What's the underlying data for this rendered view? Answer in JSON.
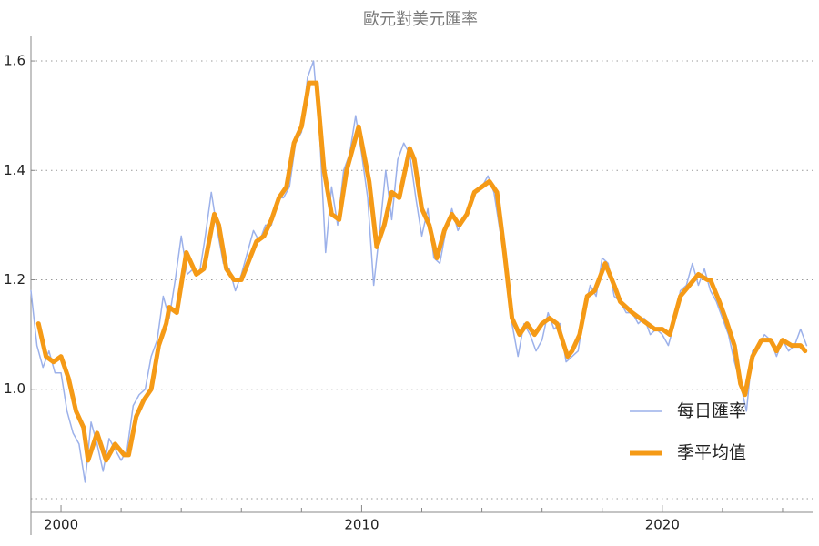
{
  "chart_data": {
    "type": "line",
    "title": "歐元對美元匯率",
    "xlim": [
      1999,
      2025
    ],
    "xticks": [
      2000,
      2010,
      2020
    ],
    "xminorticks": [
      2002,
      2004,
      2006,
      2008,
      2012,
      2014,
      2016,
      2018,
      2022,
      2024
    ],
    "ylim": [
      0.775,
      1.645
    ],
    "yticks": [
      {
        "value": 1.0,
        "label": "1.0"
      },
      {
        "value": 1.2,
        "label": "1.2"
      },
      {
        "value": 1.4,
        "label": "1.4"
      },
      {
        "value": 1.6,
        "label": "1.6"
      }
    ],
    "ygrid": [
      0.8,
      1.0,
      1.2,
      1.4,
      1.6
    ],
    "grid": true,
    "legend": "lower right",
    "series": [
      {
        "name": "每日匯率",
        "color": "#9cb1ea",
        "width": 1.5,
        "x": [
          1999.0,
          1999.2,
          1999.4,
          1999.6,
          1999.8,
          2000.0,
          2000.2,
          2000.4,
          2000.6,
          2000.8,
          2001.0,
          2001.2,
          2001.4,
          2001.6,
          2001.8,
          2002.0,
          2002.2,
          2002.4,
          2002.6,
          2002.8,
          2003.0,
          2003.2,
          2003.4,
          2003.6,
          2003.8,
          2004.0,
          2004.2,
          2004.4,
          2004.6,
          2004.8,
          2005.0,
          2005.2,
          2005.4,
          2005.6,
          2005.8,
          2006.0,
          2006.2,
          2006.4,
          2006.6,
          2006.8,
          2007.0,
          2007.2,
          2007.4,
          2007.6,
          2007.8,
          2008.0,
          2008.2,
          2008.4,
          2008.6,
          2008.8,
          2009.0,
          2009.2,
          2009.4,
          2009.6,
          2009.8,
          2010.0,
          2010.2,
          2010.4,
          2010.6,
          2010.8,
          2011.0,
          2011.2,
          2011.4,
          2011.6,
          2011.8,
          2012.0,
          2012.2,
          2012.4,
          2012.6,
          2012.8,
          2013.0,
          2013.2,
          2013.4,
          2013.6,
          2013.8,
          2014.0,
          2014.2,
          2014.4,
          2014.6,
          2014.8,
          2015.0,
          2015.2,
          2015.4,
          2015.6,
          2015.8,
          2016.0,
          2016.2,
          2016.4,
          2016.6,
          2016.8,
          2017.0,
          2017.2,
          2017.4,
          2017.6,
          2017.8,
          2018.0,
          2018.2,
          2018.4,
          2018.6,
          2018.8,
          2019.0,
          2019.2,
          2019.4,
          2019.6,
          2019.8,
          2020.0,
          2020.2,
          2020.4,
          2020.6,
          2020.8,
          2021.0,
          2021.2,
          2021.4,
          2021.6,
          2021.8,
          2022.0,
          2022.2,
          2022.4,
          2022.6,
          2022.8,
          2023.0,
          2023.2,
          2023.4,
          2023.6,
          2023.8,
          2024.0,
          2024.2,
          2024.4,
          2024.6,
          2024.8
        ],
        "values": [
          1.18,
          1.08,
          1.04,
          1.07,
          1.03,
          1.03,
          0.96,
          0.92,
          0.9,
          0.83,
          0.94,
          0.9,
          0.85,
          0.91,
          0.89,
          0.87,
          0.89,
          0.97,
          0.99,
          1.0,
          1.06,
          1.09,
          1.17,
          1.13,
          1.2,
          1.28,
          1.21,
          1.22,
          1.21,
          1.28,
          1.36,
          1.29,
          1.23,
          1.22,
          1.18,
          1.21,
          1.25,
          1.29,
          1.27,
          1.3,
          1.3,
          1.35,
          1.35,
          1.37,
          1.45,
          1.47,
          1.57,
          1.6,
          1.47,
          1.25,
          1.37,
          1.3,
          1.4,
          1.43,
          1.5,
          1.43,
          1.35,
          1.19,
          1.29,
          1.4,
          1.31,
          1.42,
          1.45,
          1.43,
          1.35,
          1.28,
          1.33,
          1.24,
          1.23,
          1.29,
          1.33,
          1.29,
          1.31,
          1.33,
          1.36,
          1.37,
          1.39,
          1.36,
          1.29,
          1.24,
          1.12,
          1.06,
          1.12,
          1.1,
          1.07,
          1.09,
          1.14,
          1.11,
          1.12,
          1.05,
          1.06,
          1.07,
          1.14,
          1.19,
          1.17,
          1.24,
          1.23,
          1.17,
          1.16,
          1.14,
          1.14,
          1.12,
          1.13,
          1.1,
          1.11,
          1.1,
          1.08,
          1.12,
          1.18,
          1.19,
          1.23,
          1.19,
          1.22,
          1.18,
          1.16,
          1.13,
          1.1,
          1.05,
          1.01,
          0.96,
          1.07,
          1.08,
          1.1,
          1.09,
          1.06,
          1.09,
          1.07,
          1.08,
          1.11,
          1.08
        ]
      },
      {
        "name": "季平均值",
        "color": "#f59a16",
        "width": 5,
        "x": [
          1999.25,
          1999.5,
          1999.75,
          2000.0,
          2000.25,
          2000.5,
          2000.75,
          2000.9,
          2001.2,
          2001.5,
          2001.8,
          2002.1,
          2002.25,
          2002.5,
          2002.75,
          2003.0,
          2003.25,
          2003.5,
          2003.6,
          2003.85,
          2004.17,
          2004.5,
          2004.75,
          2005.1,
          2005.25,
          2005.5,
          2005.75,
          2006.0,
          2006.5,
          2006.75,
          2007.0,
          2007.25,
          2007.5,
          2007.75,
          2008.0,
          2008.25,
          2008.5,
          2008.75,
          2009.0,
          2009.25,
          2009.5,
          2009.9,
          2010.25,
          2010.5,
          2010.75,
          2011.0,
          2011.25,
          2011.6,
          2011.75,
          2012.0,
          2012.25,
          2012.5,
          2012.75,
          2013.0,
          2013.25,
          2013.5,
          2013.75,
          2014.0,
          2014.25,
          2014.5,
          2014.75,
          2015.0,
          2015.25,
          2015.5,
          2015.75,
          2016.0,
          2016.25,
          2016.5,
          2016.85,
          2017.0,
          2017.25,
          2017.5,
          2017.75,
          2018.1,
          2018.4,
          2018.6,
          2019.0,
          2019.25,
          2019.5,
          2019.75,
          2020.0,
          2020.25,
          2020.6,
          2020.9,
          2021.2,
          2021.5,
          2021.6,
          2021.9,
          2022.1,
          2022.4,
          2022.6,
          2022.75,
          2023.0,
          2023.3,
          2023.6,
          2023.8,
          2024.0,
          2024.3,
          2024.6,
          2024.75
        ],
        "values": [
          1.12,
          1.06,
          1.05,
          1.06,
          1.02,
          0.96,
          0.93,
          0.87,
          0.92,
          0.87,
          0.9,
          0.88,
          0.88,
          0.95,
          0.98,
          1.0,
          1.08,
          1.12,
          1.15,
          1.14,
          1.25,
          1.21,
          1.22,
          1.32,
          1.3,
          1.22,
          1.2,
          1.2,
          1.27,
          1.28,
          1.31,
          1.35,
          1.37,
          1.45,
          1.48,
          1.56,
          1.56,
          1.4,
          1.32,
          1.31,
          1.4,
          1.48,
          1.38,
          1.26,
          1.3,
          1.36,
          1.35,
          1.44,
          1.42,
          1.33,
          1.3,
          1.24,
          1.29,
          1.32,
          1.3,
          1.32,
          1.36,
          1.37,
          1.38,
          1.36,
          1.25,
          1.13,
          1.1,
          1.12,
          1.1,
          1.12,
          1.13,
          1.12,
          1.06,
          1.07,
          1.1,
          1.17,
          1.18,
          1.23,
          1.19,
          1.16,
          1.14,
          1.13,
          1.12,
          1.11,
          1.11,
          1.1,
          1.17,
          1.19,
          1.21,
          1.2,
          1.2,
          1.16,
          1.13,
          1.08,
          1.01,
          0.99,
          1.06,
          1.09,
          1.09,
          1.07,
          1.09,
          1.08,
          1.08,
          1.07
        ]
      }
    ]
  }
}
